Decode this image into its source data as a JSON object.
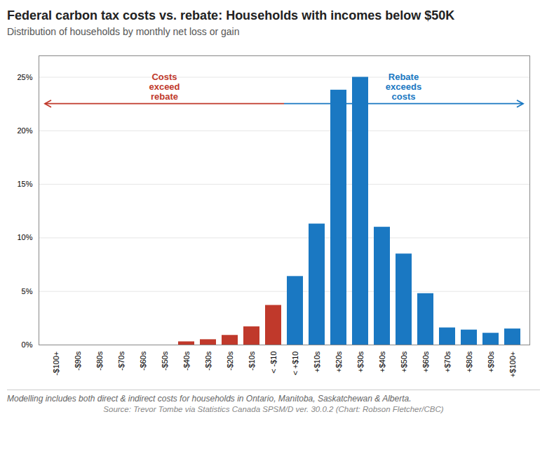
{
  "chart_data": {
    "type": "bar",
    "title": "Federal carbon tax costs vs. rebate: Households with incomes below $50K",
    "subtitle": "Distribution of households by monthly net loss or gain",
    "categories": [
      "-$100+",
      "-$90s",
      "-$80s",
      "-$70s",
      "-$60s",
      "-$50s",
      "-$40s",
      "-$30s",
      "-$20s",
      "-$10s",
      "< -$10",
      "< +$10",
      "+$10s",
      "+$20s",
      "+$30s",
      "+$40s",
      "+$50s",
      "+$60s",
      "+$70s",
      "+$80s",
      "+$90s",
      "+$100+"
    ],
    "values": [
      0.0,
      0.0,
      0.0,
      0.0,
      0.0,
      0.0,
      0.3,
      0.5,
      0.9,
      1.7,
      3.7,
      6.4,
      11.3,
      23.8,
      25.0,
      11.0,
      8.5,
      4.8,
      1.6,
      1.4,
      1.1,
      1.5
    ],
    "colors": [
      "#c0392b",
      "#c0392b",
      "#c0392b",
      "#c0392b",
      "#c0392b",
      "#c0392b",
      "#c0392b",
      "#c0392b",
      "#c0392b",
      "#c0392b",
      "#c0392b",
      "#1a78c2",
      "#1a78c2",
      "#1a78c2",
      "#1a78c2",
      "#1a78c2",
      "#1a78c2",
      "#1a78c2",
      "#1a78c2",
      "#1a78c2",
      "#1a78c2",
      "#1a78c2"
    ],
    "ylim": [
      0,
      27
    ],
    "yticks": [
      {
        "value": 0,
        "label": "0%"
      },
      {
        "value": 5,
        "label": "5%"
      },
      {
        "value": 10,
        "label": "10%"
      },
      {
        "value": 15,
        "label": "15%"
      },
      {
        "value": 20,
        "label": "20%"
      },
      {
        "value": 25,
        "label": "25%"
      }
    ],
    "grid": true,
    "annotations": [
      {
        "text": "Costs\nexceed\nrebate",
        "color": "#c0392b"
      },
      {
        "text": "Rebate\nexceeds\ncosts",
        "color": "#1a78c2"
      }
    ],
    "caption": "Modelling includes both direct & indirect costs for households in Ontario, Manitoba, Saskatchewan & Alberta.",
    "source": "Source: Trevor Tombe via Statistics Canada SPSM/D ver. 30.0.2 (Chart: Robson Fletcher/CBC)"
  }
}
